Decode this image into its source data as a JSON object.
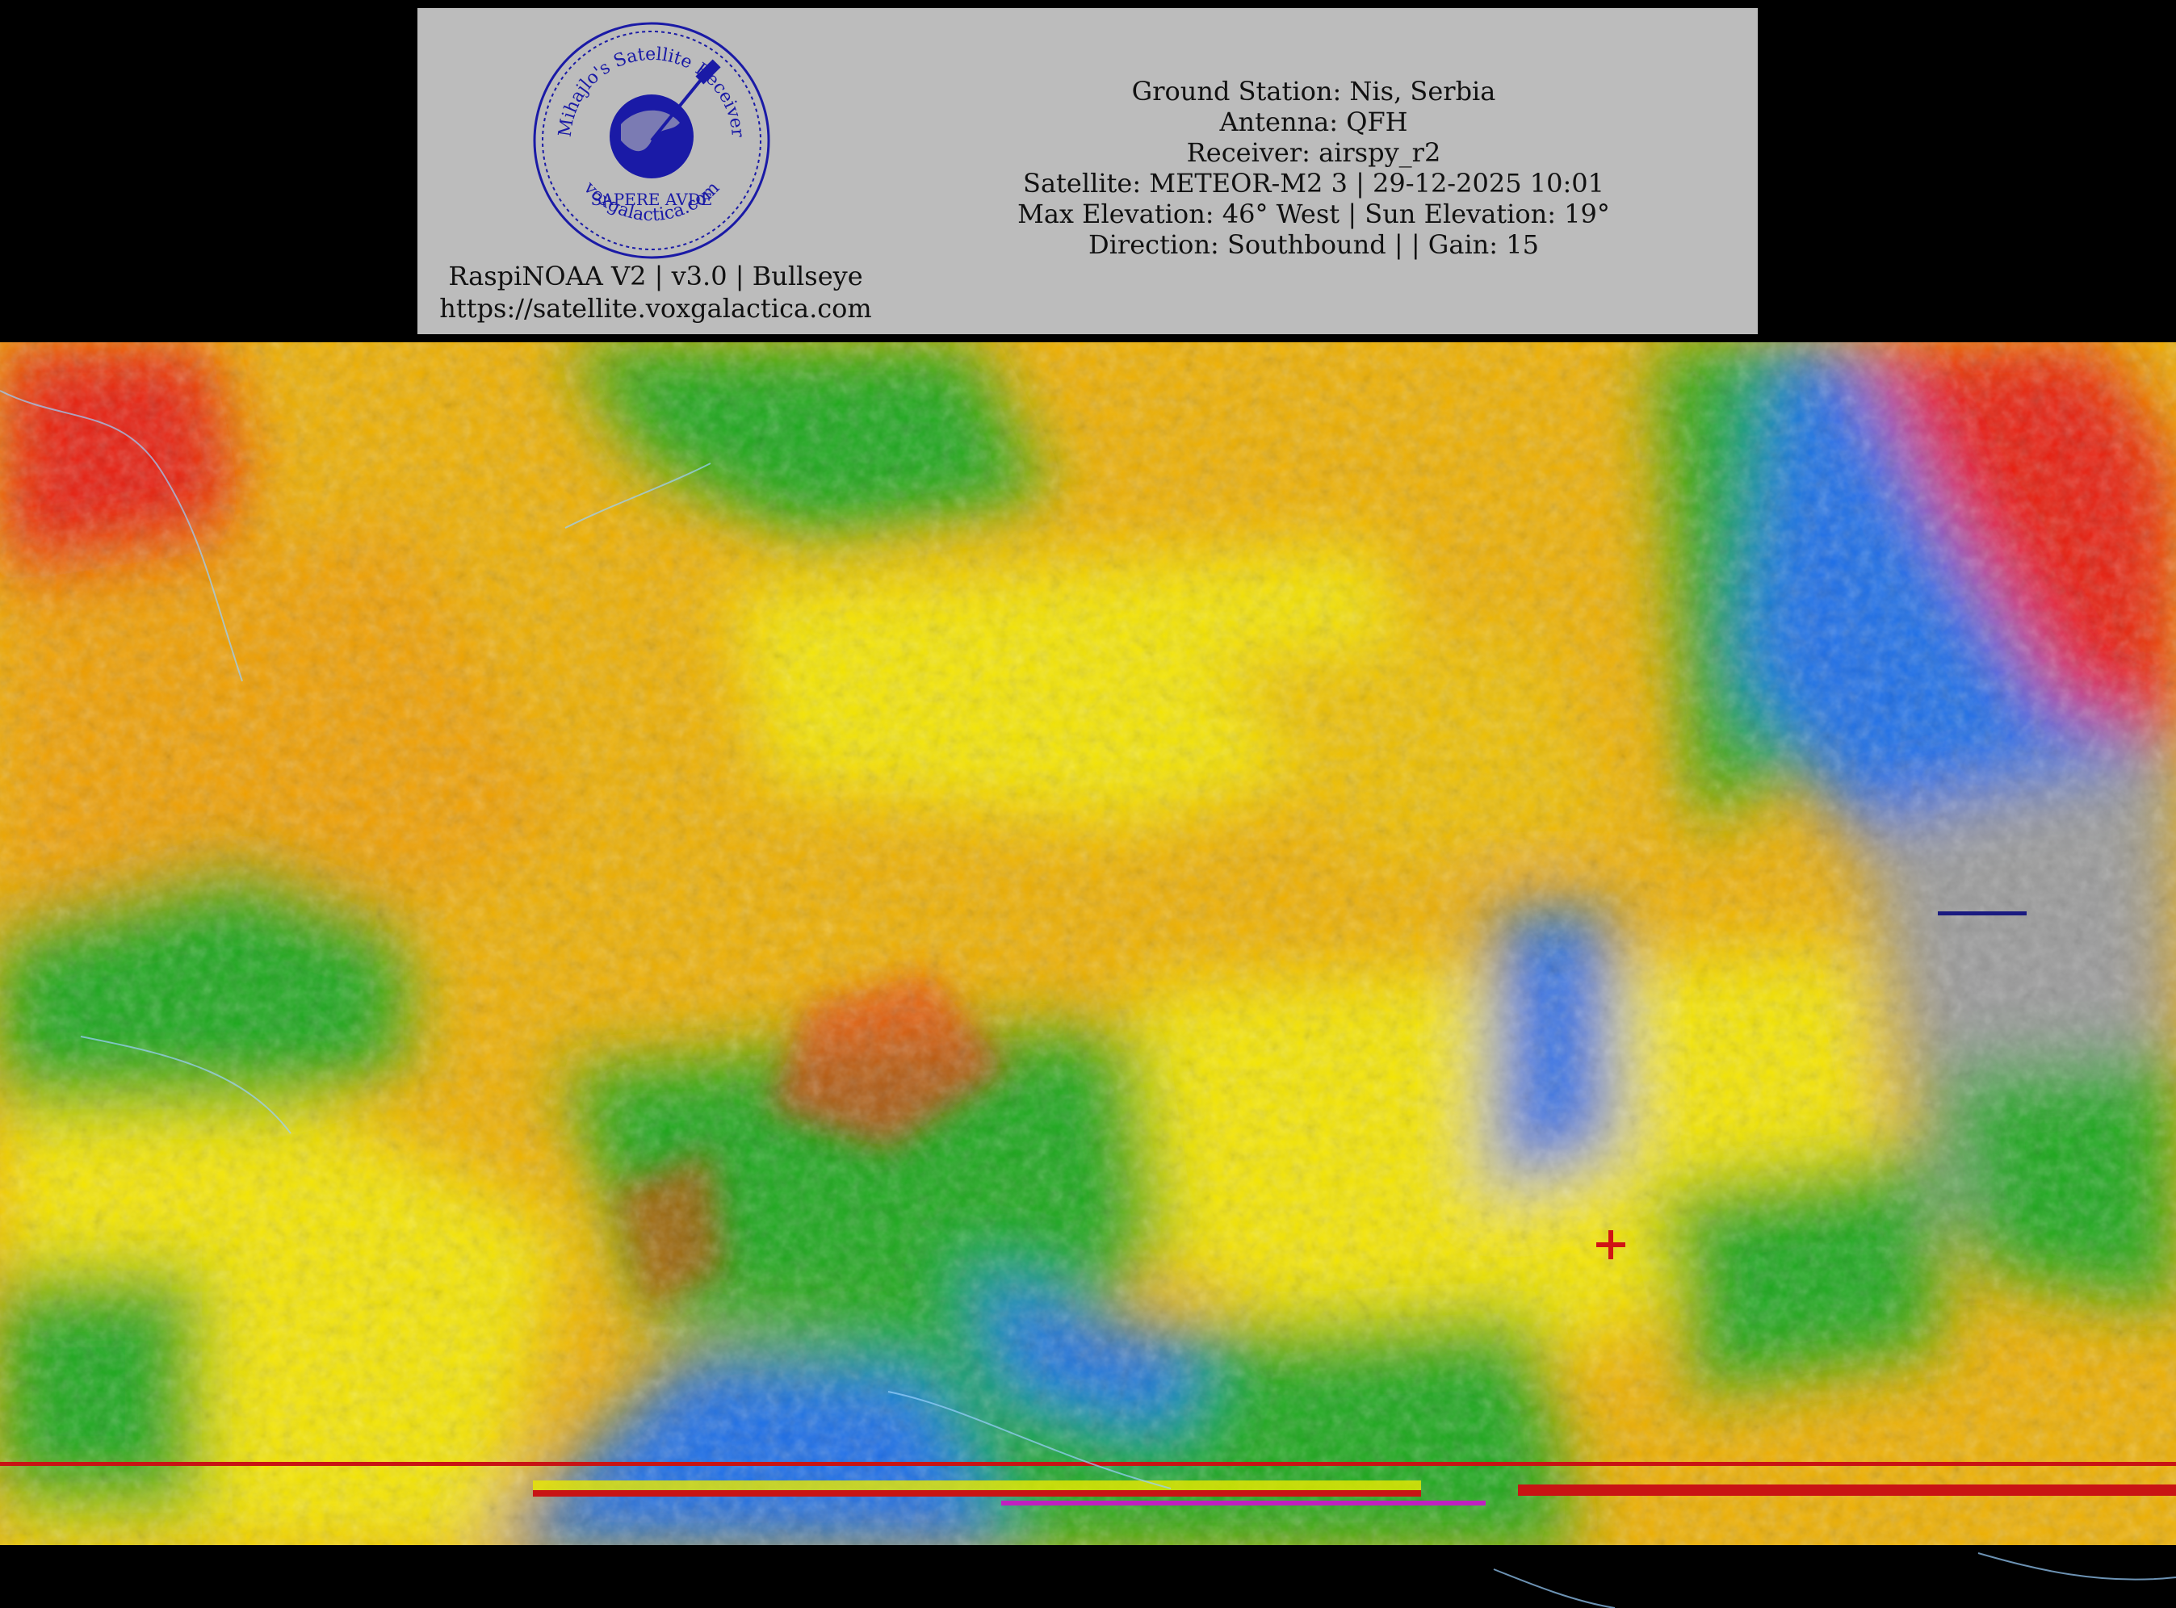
{
  "header": {
    "seal": {
      "top_text": "Mihajlo's Satellite Receiver",
      "middle_text": "SAPERE AVDE",
      "bottom_text": "voxgalactica.com",
      "color": "#1a1aa6"
    },
    "footer_lines": [
      "RaspiNOAA V2 | v3.0 | Bullseye",
      "https://satellite.voxgalactica.com"
    ],
    "info_lines": [
      "Ground Station: Nis, Serbia",
      "Antenna: QFH",
      "Receiver: airspy_r2",
      "Satellite: METEOR-M2 3 | 29-12-2025 10:01",
      "Max Elevation: 46° West | Sun Elevation: 19°",
      "Direction: Southbound | | Gain: 15"
    ],
    "background": "#bcbcbc"
  },
  "image": {
    "description_colors": {
      "cloud_yellow": "#f5e600",
      "cloud_orange": "#eea800",
      "cloud_red": "#e81e0a",
      "land_green": "#1aa81a",
      "sea_blue": "#1a6ee8",
      "cold_gray": "#9a9a9a"
    },
    "marker_icon": "station-crosshair-icon"
  }
}
